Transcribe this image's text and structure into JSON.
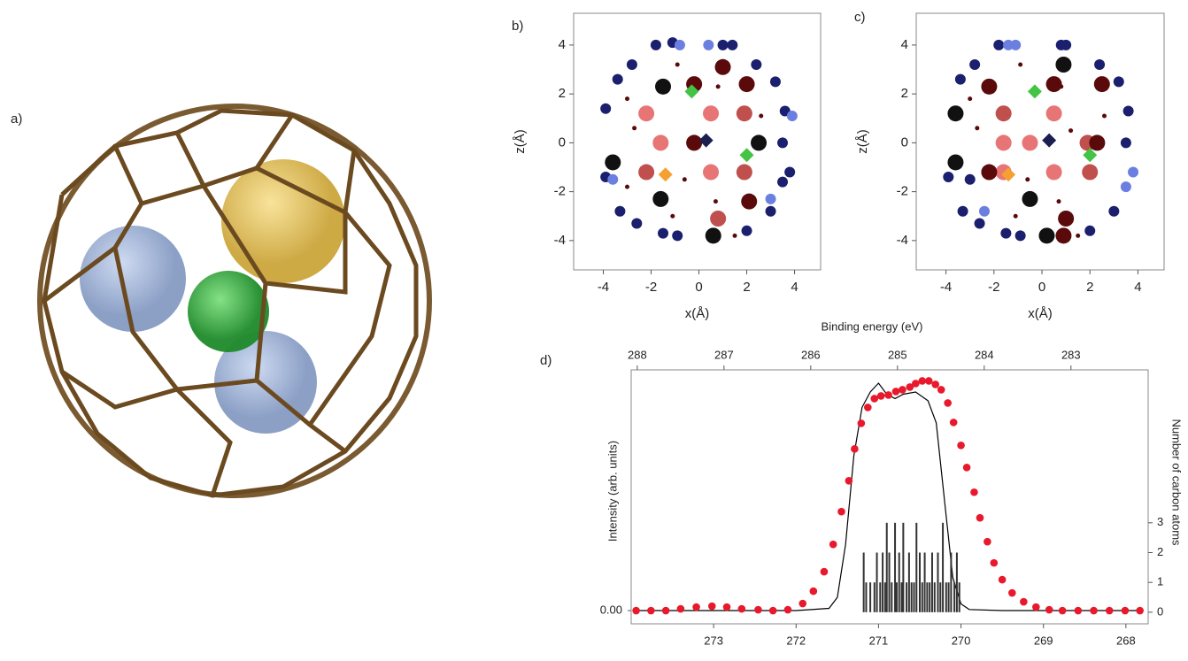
{
  "illustration": {
    "label": "a)"
  },
  "chart_data": [
    {
      "type": "scatter",
      "panel_label": "b)",
      "xlabel": "x(Å)",
      "ylabel": "z(Å)",
      "xlim": [
        -5.24,
        5.09
      ],
      "xticks": [
        -4,
        -2,
        0,
        2,
        4
      ],
      "ylim": [
        -5.2,
        5.3
      ],
      "yticks": [
        -4,
        -2,
        0,
        2,
        4
      ],
      "series": [
        {
          "color": "#e87575",
          "marker": "circle",
          "x": [
            -2.2,
            0.5,
            -1.6,
            0.5
          ],
          "values": [
            1.2,
            1.2,
            0,
            -1.2
          ]
        },
        {
          "color": "#c0504d",
          "marker": "circle",
          "x": [
            1.9,
            -2.2,
            1.9,
            0.8
          ],
          "values": [
            1.2,
            -1.2,
            -1.2,
            -3.1
          ]
        },
        {
          "color": "#5a0a0a",
          "marker": "circle",
          "x": [
            -0.2,
            1.0,
            2.0,
            2.1,
            -0.2
          ],
          "values": [
            0,
            3.1,
            2.4,
            -2.4,
            2.4
          ]
        },
        {
          "color": "#111111",
          "marker": "circle",
          "x": [
            -1.5,
            -1.6,
            2.5,
            0.6,
            -3.6
          ],
          "values": [
            2.3,
            -2.3,
            0,
            -3.8,
            -0.8
          ]
        },
        {
          "color": "#1a1f6e",
          "marker": "circle",
          "x": [
            -3.9,
            -3.9,
            -3.4,
            -3.3,
            -2.8,
            -2.6,
            -1.8,
            -1.5,
            -0.9,
            -1.1,
            1.0,
            1.4,
            2.4,
            3.2,
            3.6,
            3.5,
            3.8,
            3.5,
            3.0,
            2.0
          ],
          "values": [
            1.4,
            -1.4,
            2.6,
            -2.8,
            3.2,
            -3.3,
            4.0,
            -3.7,
            -3.8,
            4.1,
            4.0,
            4.0,
            3.2,
            2.5,
            1.3,
            0,
            -1.2,
            -1.6,
            -2.8,
            -3.6
          ]
        },
        {
          "color": "#6a7fe0",
          "marker": "circle",
          "x": [
            0.4,
            -3.6,
            3.0,
            3.9,
            -0.8
          ],
          "values": [
            4.0,
            -1.5,
            -2.3,
            1.1,
            4.0
          ]
        },
        {
          "color": "#5a0a0a",
          "marker": "circle",
          "x": [
            -3.0,
            -3.0,
            0.8,
            -0.9,
            0.7,
            -1.1,
            2.6,
            -0.6,
            1.5,
            -2.7
          ],
          "values": [
            1.8,
            -1.8,
            2.3,
            3.2,
            -2.4,
            -3.0,
            1.1,
            -1.5,
            -3.8,
            0.6
          ]
        },
        {
          "color": "#44c444",
          "marker": "diamond",
          "x": [
            -0.3,
            2.0
          ],
          "values": [
            2.1,
            -0.5
          ]
        },
        {
          "color": "#f5a030",
          "marker": "diamond",
          "x": [
            -1.4
          ],
          "values": [
            -1.3
          ]
        },
        {
          "color": "#1a1f50",
          "marker": "diamond",
          "x": [
            0.3
          ],
          "values": [
            0.1
          ]
        }
      ]
    },
    {
      "type": "scatter",
      "panel_label": "c)",
      "xlabel": "x(Å)",
      "ylabel": "z(Å)",
      "xlim": [
        -5.24,
        5.09
      ],
      "xticks": [
        -4,
        -2,
        0,
        2,
        4
      ],
      "ylim": [
        -5.2,
        5.3
      ],
      "yticks": [
        -4,
        -2,
        0,
        2,
        4
      ],
      "series": [
        {
          "color": "#e87575",
          "marker": "circle",
          "x": [
            0.5,
            -1.6,
            -0.5,
            0.5,
            -1.6
          ],
          "values": [
            1.2,
            0,
            0,
            -1.2,
            -1.2
          ]
        },
        {
          "color": "#c0504d",
          "marker": "circle",
          "x": [
            -1.6,
            1.9,
            2.0
          ],
          "values": [
            1.2,
            0,
            -1.2
          ]
        },
        {
          "color": "#5a0a0a",
          "marker": "circle",
          "x": [
            -2.2,
            0.5,
            2.3,
            -2.2,
            1.0,
            0.9,
            2.5
          ],
          "values": [
            2.3,
            2.4,
            0,
            -1.2,
            -3.1,
            -3.8,
            2.4
          ]
        },
        {
          "color": "#111111",
          "marker": "circle",
          "x": [
            -3.6,
            0.9,
            -0.5,
            -3.6,
            0.2
          ],
          "values": [
            1.2,
            3.2,
            -2.3,
            -0.8,
            -3.8
          ]
        },
        {
          "color": "#1a1f6e",
          "marker": "circle",
          "x": [
            -3.9,
            -3.4,
            -3.3,
            -2.8,
            -2.6,
            -1.8,
            -1.5,
            -0.9,
            0.8,
            1.0,
            2.4,
            3.2,
            3.6,
            3.5,
            3.0,
            2.0,
            -3.0
          ],
          "values": [
            -1.4,
            2.6,
            -2.8,
            3.2,
            -3.3,
            4.0,
            -3.7,
            -3.8,
            4.0,
            4.0,
            3.2,
            2.5,
            1.3,
            0,
            -2.8,
            -3.6,
            -1.5
          ]
        },
        {
          "color": "#6a7fe0",
          "marker": "circle",
          "x": [
            -1.4,
            -1.1,
            3.8,
            3.5,
            -2.4
          ],
          "values": [
            4.0,
            4.0,
            -1.2,
            -1.8,
            -2.8
          ]
        },
        {
          "color": "#5a0a0a",
          "marker": "circle",
          "x": [
            -3.0,
            0.8,
            -0.9,
            0.7,
            -1.1,
            2.6,
            -0.6,
            1.5,
            -2.7,
            1.2
          ],
          "values": [
            1.8,
            2.3,
            3.2,
            -2.4,
            -3.0,
            1.1,
            -1.5,
            -3.8,
            0.6,
            0.5
          ]
        },
        {
          "color": "#44c444",
          "marker": "diamond",
          "x": [
            -0.3,
            2.0
          ],
          "values": [
            2.1,
            -0.5
          ]
        },
        {
          "color": "#f5a030",
          "marker": "diamond",
          "x": [
            -1.4
          ],
          "values": [
            -1.3
          ]
        },
        {
          "color": "#1a1f50",
          "marker": "diamond",
          "x": [
            0.3
          ],
          "values": [
            0.1
          ]
        }
      ]
    },
    {
      "type": "spectrum",
      "panel_label": "d)",
      "x2label": "Binding energy (eV)",
      "ylabel": "Intensity (arb. units)",
      "y2label": "Number of carbon atoms",
      "xlim": [
        274.0,
        267.73
      ],
      "xticks": [
        273,
        272,
        271,
        270,
        269,
        268
      ],
      "x2lim": [
        288.07,
        282.11
      ],
      "x2ticks": [
        288,
        287,
        286,
        285,
        284,
        283
      ],
      "ylim": [
        -0.06,
        1.09
      ],
      "yticks": [
        {
          "value": 0,
          "label": "0.00"
        }
      ],
      "y2lim": [
        -0.39,
        8.13
      ],
      "y2ticks": [
        0,
        1,
        2,
        3
      ],
      "series": [
        {
          "type": "line",
          "color": "#000000",
          "x": [
            273.9,
            272.0,
            271.6,
            271.5,
            271.4,
            271.3,
            271.2,
            271.1,
            271.0,
            270.9,
            270.8,
            270.7,
            270.55,
            270.4,
            270.3,
            270.2,
            270.1,
            270.0,
            269.9,
            269.5,
            267.8
          ],
          "values": [
            0,
            0,
            0.01,
            0.06,
            0.3,
            0.7,
            0.92,
            0.99,
            1.03,
            0.98,
            0.96,
            0.98,
            0.99,
            0.95,
            0.85,
            0.5,
            0.15,
            0.03,
            0.005,
            0,
            0
          ]
        },
        {
          "type": "scatter",
          "color": "#e8192c",
          "x": [
            273.94,
            273.76,
            273.58,
            273.4,
            273.21,
            273.02,
            272.84,
            272.66,
            272.46,
            272.28,
            272.1,
            271.92,
            271.79,
            271.66,
            271.55,
            271.45,
            271.36,
            271.29,
            271.21,
            271.13,
            271.05,
            270.97,
            270.88,
            270.79,
            270.71,
            270.62,
            270.55,
            270.47,
            270.39,
            270.31,
            270.24,
            270.16,
            270.09,
            270.0,
            269.93,
            269.84,
            269.77,
            269.68,
            269.6,
            269.5,
            269.38,
            269.24,
            269.09,
            268.93,
            268.77,
            268.58,
            268.39,
            268.2,
            268.01,
            267.83
          ],
          "values": [
            0,
            0,
            0,
            0.008,
            0.016,
            0.02,
            0.016,
            0.008,
            0.004,
            0,
            0.004,
            0.032,
            0.088,
            0.176,
            0.3,
            0.448,
            0.588,
            0.732,
            0.848,
            0.92,
            0.96,
            0.972,
            0.976,
            0.992,
            1.0,
            1.012,
            1.028,
            1.04,
            1.04,
            1.024,
            1.0,
            0.94,
            0.852,
            0.748,
            0.648,
            0.536,
            0.42,
            0.312,
            0.216,
            0.14,
            0.08,
            0.04,
            0.016,
            0.004,
            0,
            0,
            0,
            0,
            0,
            0
          ]
        },
        {
          "type": "bar",
          "color": "#333333",
          "axis": "y2",
          "x": [
            271.18,
            271.15,
            271.1,
            271.05,
            271.02,
            270.98,
            270.95,
            270.92,
            270.9,
            270.87,
            270.84,
            270.8,
            270.78,
            270.75,
            270.72,
            270.7,
            270.66,
            270.63,
            270.6,
            270.57,
            270.54,
            270.5,
            270.47,
            270.44,
            270.41,
            270.38,
            270.35,
            270.32,
            270.28,
            270.25,
            270.22,
            270.18,
            270.15,
            270.12,
            270.08,
            270.05,
            270.02
          ],
          "values": [
            2,
            1,
            1,
            1,
            2,
            1,
            2,
            1,
            3,
            2,
            1,
            3,
            1,
            2,
            1,
            3,
            1,
            2,
            1,
            1,
            3,
            2,
            1,
            2,
            1,
            1,
            2,
            1,
            2,
            1,
            3,
            1,
            1,
            2,
            1,
            2,
            1
          ]
        }
      ]
    }
  ]
}
